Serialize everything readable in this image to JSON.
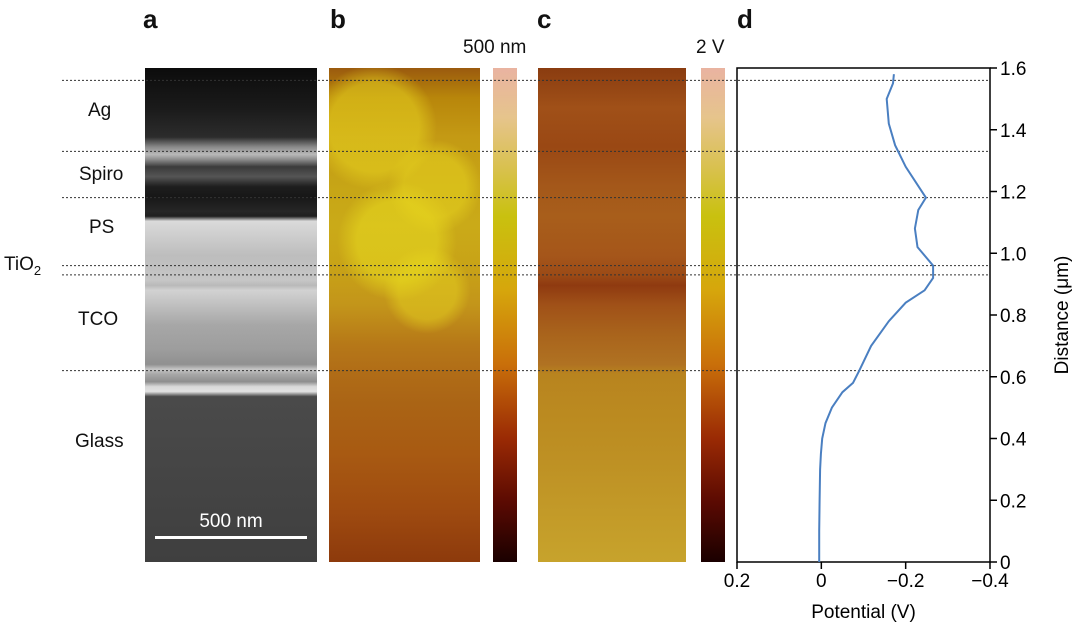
{
  "panels": {
    "a": "a",
    "b": "b",
    "c": "c",
    "d": "d"
  },
  "layers": {
    "ag": "Ag",
    "spiro": "Spiro",
    "ps": "PS",
    "tio2": "TiO",
    "tio2_sub": "2",
    "tco": "TCO",
    "glass": "Glass"
  },
  "scale_bar": "500 nm",
  "colorbar_b_label": "500 nm",
  "colorbar_c_label": "2 V",
  "colors": {
    "profile_line": "#4a7fc1",
    "axis": "#000000"
  },
  "chart_data": {
    "type": "line",
    "xlabel": "Potential (V)",
    "ylabel": "Distance (μm)",
    "xlim": [
      0.2,
      -0.4
    ],
    "ylim": [
      0,
      1.6
    ],
    "x_ticks": [
      "0.2",
      "0",
      "−0.2",
      "−0.4"
    ],
    "y_ticks": [
      "0",
      "0.2",
      "0.4",
      "0.6",
      "0.8",
      "1.0",
      "1.2",
      "1.4",
      "1.6"
    ],
    "series": [
      {
        "x": [
          0.005,
          0.005,
          0.004,
          0.003,
          0.001,
          -0.002,
          -0.01,
          -0.025,
          -0.05,
          -0.075,
          -0.09,
          -0.118,
          -0.16,
          -0.2,
          -0.245,
          -0.265,
          -0.265,
          -0.228,
          -0.222,
          -0.23,
          -0.248,
          -0.2,
          -0.175,
          -0.16,
          -0.155,
          -0.17,
          -0.172
        ],
        "y": [
          0.0,
          0.1,
          0.2,
          0.3,
          0.35,
          0.4,
          0.45,
          0.5,
          0.55,
          0.58,
          0.62,
          0.7,
          0.78,
          0.84,
          0.88,
          0.92,
          0.96,
          1.02,
          1.08,
          1.14,
          1.18,
          1.28,
          1.35,
          1.42,
          1.5,
          1.55,
          1.58
        ]
      }
    ],
    "layer_boundaries": [
      1.56,
      1.33,
      1.18,
      0.96,
      0.93,
      0.62
    ]
  }
}
